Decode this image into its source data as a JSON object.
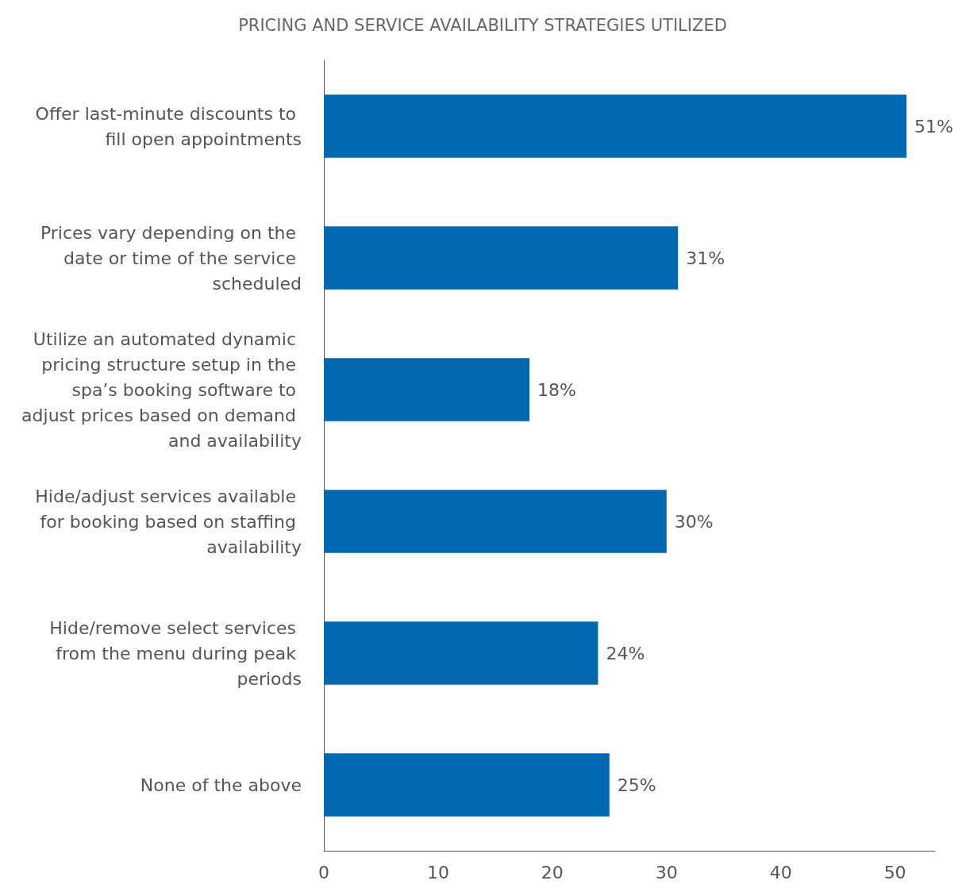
{
  "chart_data": {
    "type": "bar",
    "orientation": "horizontal",
    "title": "PRICING AND SERVICE AVAILABILITY STRATEGIES UTILIZED",
    "categories": [
      "Offer last-minute discounts to fill open appointments",
      "Prices vary depending on the date or time of the service scheduled",
      "Utilize an automated dynamic pricing structure setup in the spa’s booking software to adjust prices based on demand and availability",
      "Hide/adjust services available for booking based on staffing availability",
      "Hide/remove select services from the menu during peak periods",
      "None of the above"
    ],
    "values": [
      51,
      31,
      18,
      30,
      24,
      25
    ],
    "value_labels": [
      "51%",
      "31%",
      "18%",
      "30%",
      "24%",
      "25%"
    ],
    "color": "#0068b0",
    "xlim": [
      0,
      53.5
    ],
    "xticks": [
      0,
      10,
      20,
      30,
      40,
      50
    ],
    "grid": false
  }
}
